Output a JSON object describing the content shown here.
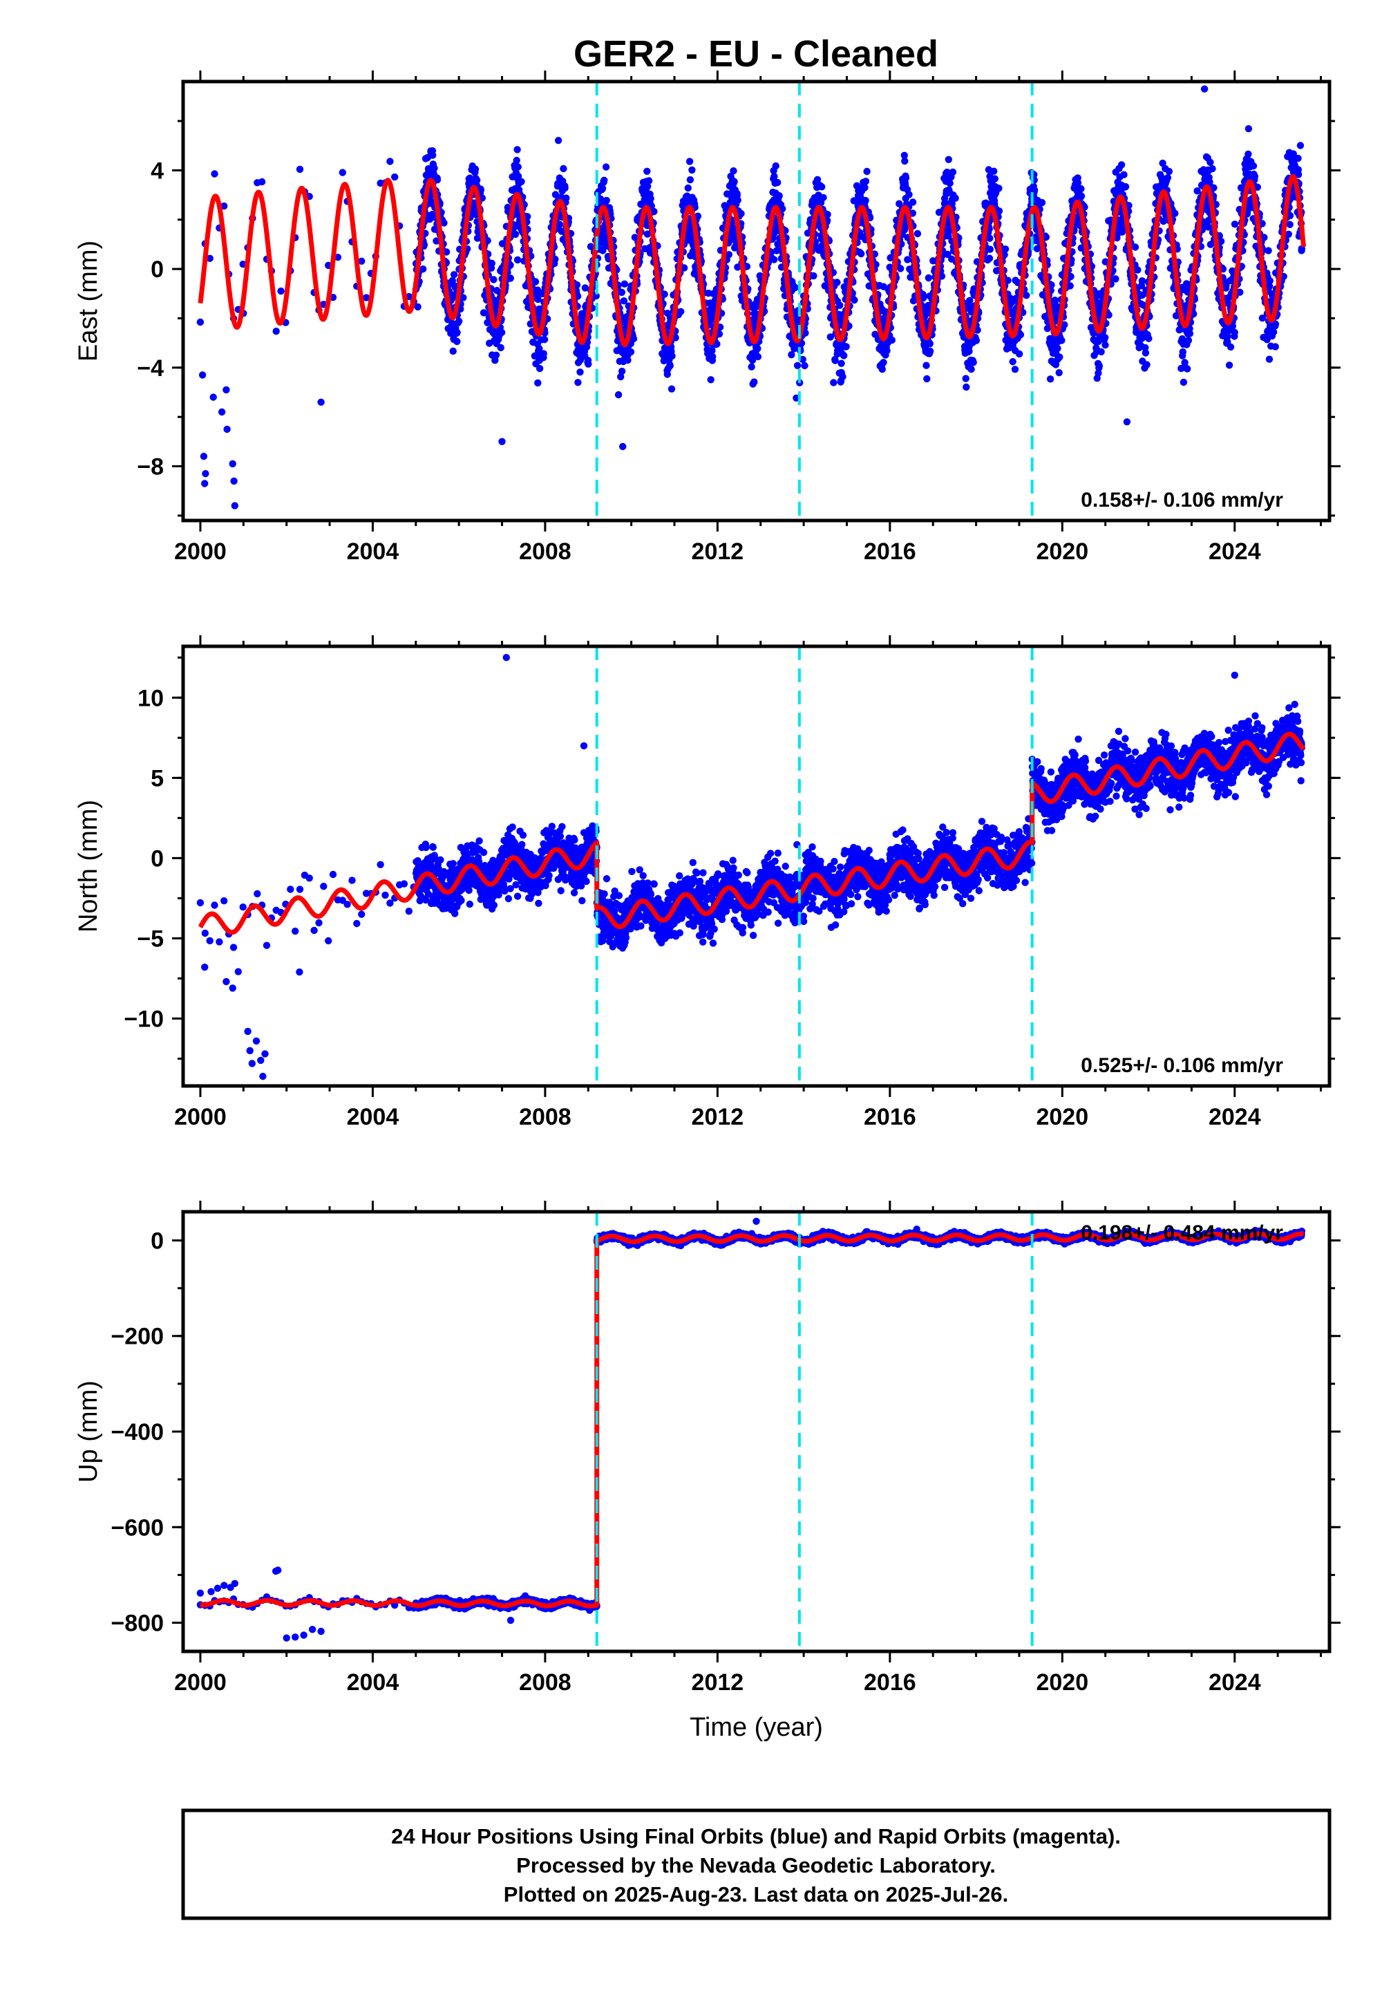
{
  "title": "GER2  - EU - Cleaned",
  "footer": {
    "lines": [
      "24 Hour Positions Using Final Orbits (blue) and Rapid Orbits (magenta).",
      "Processed by the Nevada Geodetic Laboratory.",
      "Plotted on 2025-Aug-23. Last data on 2025-Jul-26."
    ]
  },
  "colors": {
    "points": "#0000ff",
    "model": "#ff0000",
    "offset_lines": "#00e5ee",
    "frame": "#000000"
  },
  "chart_data": [
    {
      "type": "scatter",
      "id": "east",
      "ylabel": "East (mm)",
      "xlabel": "",
      "xlim": [
        1999.6,
        2026.2
      ],
      "ylim": [
        -10.2,
        7.6
      ],
      "x_ticks": [
        2000,
        2004,
        2008,
        2012,
        2016,
        2020,
        2024
      ],
      "y_ticks": [
        4,
        0,
        -4,
        -8
      ],
      "y_tick_labels": [
        "4",
        "0",
        "−4",
        "−8"
      ],
      "rate_label": "0.158+/- 0.106 mm/yr",
      "offsets": [
        2009.2,
        2013.9,
        2019.3
      ],
      "model": {
        "epochs": [
          2000.0,
          2005.0,
          2009.2,
          2019.3,
          2025.6
        ],
        "level": [
          0.2,
          1.0,
          -0.3,
          -0.1,
          0.9
        ],
        "amplitude": [
          2.7,
          2.7,
          2.8,
          2.6,
          2.9
        ],
        "phase_peak": 0.35
      },
      "observations": {
        "dense_start": 2005.0,
        "dense_end": 2025.56,
        "sparse_start": 2000.0,
        "scatter": 1.3,
        "outliers": [
          {
            "x": 2000.05,
            "y": -4.3
          },
          {
            "x": 2000.08,
            "y": -7.6
          },
          {
            "x": 2000.1,
            "y": -8.7
          },
          {
            "x": 2000.12,
            "y": -8.3
          },
          {
            "x": 2000.3,
            "y": -5.2
          },
          {
            "x": 2000.5,
            "y": -5.8
          },
          {
            "x": 2000.6,
            "y": -4.9
          },
          {
            "x": 2000.62,
            "y": -6.5
          },
          {
            "x": 2000.75,
            "y": -7.9
          },
          {
            "x": 2000.78,
            "y": -8.6
          },
          {
            "x": 2000.8,
            "y": -9.6
          },
          {
            "x": 2007.0,
            "y": -7.0
          },
          {
            "x": 2009.8,
            "y": -7.2
          },
          {
            "x": 2021.5,
            "y": -6.2
          },
          {
            "x": 2023.3,
            "y": 7.3
          },
          {
            "x": 2002.8,
            "y": -5.4
          },
          {
            "x": 2001.0,
            "y": -1.8
          }
        ]
      }
    },
    {
      "type": "scatter",
      "id": "north",
      "ylabel": "North (mm)",
      "xlabel": "",
      "xlim": [
        1999.6,
        2026.2
      ],
      "ylim": [
        -14.2,
        13.2
      ],
      "x_ticks": [
        2000,
        2004,
        2008,
        2012,
        2016,
        2020,
        2024
      ],
      "y_ticks": [
        10,
        5,
        0,
        -5,
        -10
      ],
      "y_tick_labels": [
        "10",
        "5",
        "0",
        "−5",
        "−10"
      ],
      "rate_label": "0.525+/- 0.106 mm/yr",
      "offsets": [
        2009.2,
        2013.9,
        2019.3
      ],
      "model": {
        "epochs": [
          2000.0,
          2005.0,
          2009.2,
          2009.2,
          2019.3,
          2019.3,
          2025.6
        ],
        "level": [
          -4.3,
          -1.8,
          0.3,
          -3.8,
          0.3,
          4.0,
          7.2
        ],
        "amplitude": [
          0.7,
          0.7,
          0.7,
          0.7,
          0.7,
          0.7,
          0.7
        ],
        "phase_peak": 0.25
      },
      "observations": {
        "dense_start": 2005.0,
        "dense_end": 2025.56,
        "sparse_start": 2000.0,
        "scatter": 1.3,
        "outliers": [
          {
            "x": 2001.1,
            "y": -10.8
          },
          {
            "x": 2001.15,
            "y": -12.0
          },
          {
            "x": 2001.2,
            "y": -12.8
          },
          {
            "x": 2001.3,
            "y": -11.4
          },
          {
            "x": 2001.4,
            "y": -12.6
          },
          {
            "x": 2001.45,
            "y": -13.6
          },
          {
            "x": 2001.5,
            "y": -12.2
          },
          {
            "x": 2007.1,
            "y": 12.5
          },
          {
            "x": 2008.9,
            "y": 7.0
          },
          {
            "x": 2000.1,
            "y": -6.8
          },
          {
            "x": 2000.6,
            "y": -7.7
          },
          {
            "x": 2000.75,
            "y": -8.1
          },
          {
            "x": 2002.3,
            "y": -7.1
          },
          {
            "x": 2024.0,
            "y": 11.4
          }
        ]
      }
    },
    {
      "type": "scatter",
      "id": "up",
      "ylabel": "Up (mm)",
      "xlabel": "Time (year)",
      "xlim": [
        1999.6,
        2026.2
      ],
      "ylim": [
        -860,
        60
      ],
      "x_ticks": [
        2000,
        2004,
        2008,
        2012,
        2016,
        2020,
        2024
      ],
      "y_ticks": [
        0,
        -200,
        -400,
        -600,
        -800
      ],
      "y_tick_labels": [
        "0",
        "−200",
        "−400",
        "−600",
        "−800"
      ],
      "rate_label": "0.198+/- 0.484 mm/yr",
      "offsets": [
        2009.2,
        2013.9,
        2019.3
      ],
      "model": {
        "epochs": [
          2000.0,
          2009.2,
          2009.2,
          2025.6
        ],
        "level": [
          -758,
          -760,
          3,
          8
        ],
        "amplitude": [
          5,
          5,
          6,
          6
        ],
        "phase_peak": 0.55
      },
      "observations": {
        "dense_start": 2005.0,
        "dense_end": 2025.56,
        "sparse_start": 2000.0,
        "scatter": 5,
        "outliers": [
          {
            "x": 2000.0,
            "y": -738
          },
          {
            "x": 2000.25,
            "y": -735
          },
          {
            "x": 2000.4,
            "y": -728
          },
          {
            "x": 2000.55,
            "y": -722
          },
          {
            "x": 2000.7,
            "y": -726
          },
          {
            "x": 2000.8,
            "y": -718
          },
          {
            "x": 2001.75,
            "y": -692
          },
          {
            "x": 2001.8,
            "y": -690
          },
          {
            "x": 2002.0,
            "y": -832
          },
          {
            "x": 2002.2,
            "y": -830
          },
          {
            "x": 2002.4,
            "y": -826
          },
          {
            "x": 2002.6,
            "y": -814
          },
          {
            "x": 2002.8,
            "y": -818
          },
          {
            "x": 2012.9,
            "y": 40
          },
          {
            "x": 2007.2,
            "y": -795
          }
        ]
      }
    }
  ]
}
